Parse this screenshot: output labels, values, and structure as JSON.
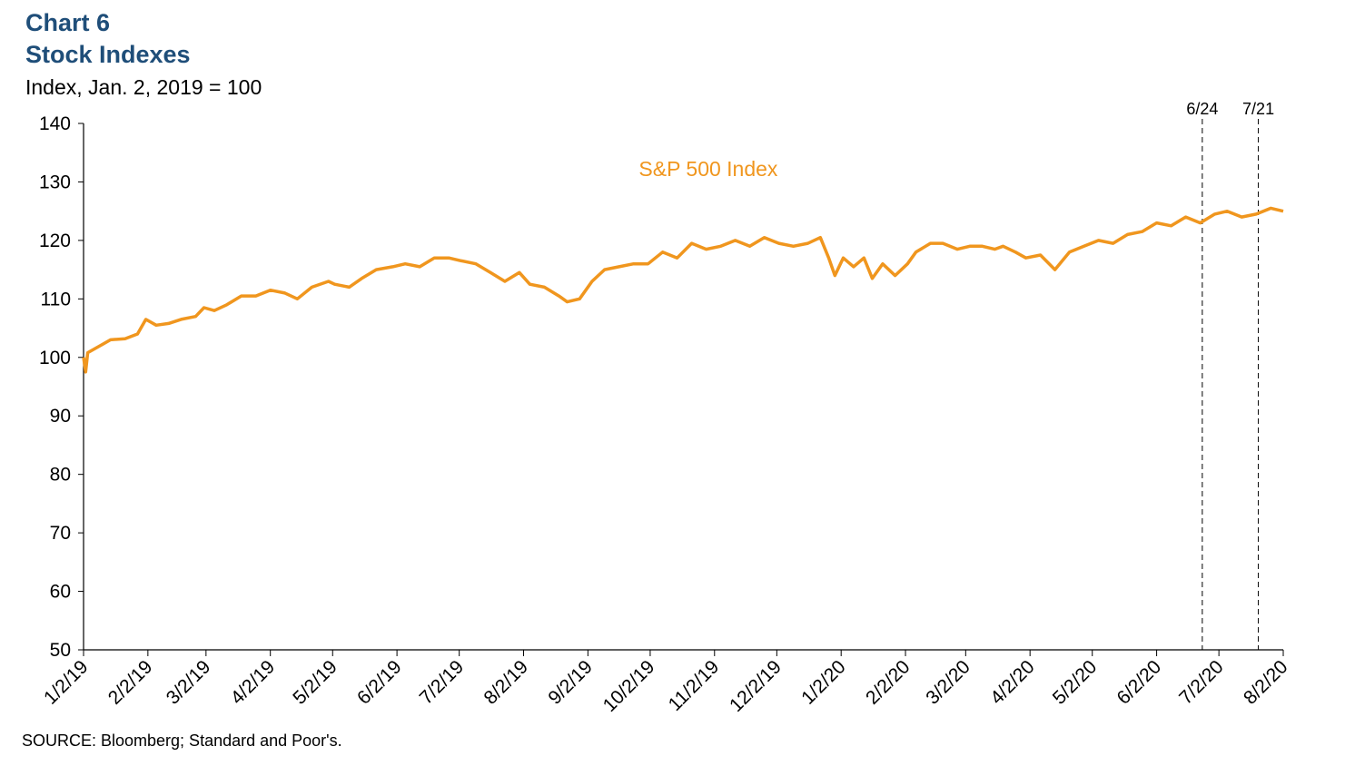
{
  "header": {
    "title_line1": "Chart 6",
    "title_line2": "Stock Indexes",
    "subtitle": "Index, Jan. 2, 2019 = 100"
  },
  "footer": {
    "source": "SOURCE: Bloomberg; Standard and Poor's."
  },
  "chart_data": {
    "type": "line",
    "title": "Chart 6 Stock Indexes",
    "ylabel": "Index, Jan. 2, 2019 = 100",
    "xlabel": "",
    "ylim": [
      50,
      140
    ],
    "xlim": [
      "2019-01-02",
      "2020-08-02"
    ],
    "y_ticks": [
      50,
      60,
      70,
      80,
      90,
      100,
      110,
      120,
      130,
      140
    ],
    "x_ticks": [
      {
        "date": "2019-01-02",
        "label": "1/2/19"
      },
      {
        "date": "2019-02-02",
        "label": "2/2/19"
      },
      {
        "date": "2019-03-02",
        "label": "3/2/19"
      },
      {
        "date": "2019-04-02",
        "label": "4/2/19"
      },
      {
        "date": "2019-05-02",
        "label": "5/2/19"
      },
      {
        "date": "2019-06-02",
        "label": "6/2/19"
      },
      {
        "date": "2019-07-02",
        "label": "7/2/19"
      },
      {
        "date": "2019-08-02",
        "label": "8/2/19"
      },
      {
        "date": "2019-09-02",
        "label": "9/2/19"
      },
      {
        "date": "2019-10-02",
        "label": "10/2/19"
      },
      {
        "date": "2019-11-02",
        "label": "11/2/19"
      },
      {
        "date": "2019-12-02",
        "label": "12/2/19"
      },
      {
        "date": "2020-01-02",
        "label": "1/2/20"
      },
      {
        "date": "2020-02-02",
        "label": "2/2/20"
      },
      {
        "date": "2020-03-02",
        "label": "3/2/20"
      },
      {
        "date": "2020-04-02",
        "label": "4/2/20"
      },
      {
        "date": "2020-05-02",
        "label": "5/2/20"
      },
      {
        "date": "2020-06-02",
        "label": "6/2/20"
      },
      {
        "date": "2020-07-02",
        "label": "7/2/20"
      },
      {
        "date": "2020-08-02",
        "label": "8/2/20"
      }
    ],
    "vertical_markers": [
      {
        "date": "2020-06-24",
        "label": "6/24"
      },
      {
        "date": "2020-07-21",
        "label": "7/21"
      }
    ],
    "grid": false,
    "legend": "inline labels",
    "series": [
      {
        "name": "S&P 500 Index",
        "color": "#f0961e",
        "points": [
          [
            "2019-01-02",
            100
          ],
          [
            "2019-01-03",
            97.5
          ],
          [
            "2019-01-04",
            100.8
          ],
          [
            "2019-01-10",
            102
          ],
          [
            "2019-01-15",
            103
          ],
          [
            "2019-01-22",
            103.2
          ],
          [
            "2019-01-28",
            104
          ],
          [
            "2019-02-01",
            106.5
          ],
          [
            "2019-02-06",
            105.5
          ],
          [
            "2019-02-12",
            105.8
          ],
          [
            "2019-02-18",
            106.5
          ],
          [
            "2019-02-25",
            107
          ],
          [
            "2019-03-01",
            108.5
          ],
          [
            "2019-03-06",
            108
          ],
          [
            "2019-03-12",
            109
          ],
          [
            "2019-03-19",
            110.5
          ],
          [
            "2019-03-26",
            110.5
          ],
          [
            "2019-04-02",
            111.5
          ],
          [
            "2019-04-09",
            111
          ],
          [
            "2019-04-15",
            110
          ],
          [
            "2019-04-22",
            112
          ],
          [
            "2019-04-30",
            113
          ],
          [
            "2019-05-03",
            112.5
          ],
          [
            "2019-05-10",
            112
          ],
          [
            "2019-05-16",
            113.5
          ],
          [
            "2019-05-23",
            115
          ],
          [
            "2019-05-31",
            115.5
          ],
          [
            "2019-06-06",
            116
          ],
          [
            "2019-06-13",
            115.5
          ],
          [
            "2019-06-20",
            117
          ],
          [
            "2019-06-27",
            117
          ],
          [
            "2019-07-03",
            116.5
          ],
          [
            "2019-07-10",
            116
          ],
          [
            "2019-07-17",
            114.5
          ],
          [
            "2019-07-24",
            113
          ],
          [
            "2019-07-31",
            114.5
          ],
          [
            "2019-08-05",
            112.5
          ],
          [
            "2019-08-12",
            112
          ],
          [
            "2019-08-19",
            110.5
          ],
          [
            "2019-08-23",
            109.5
          ],
          [
            "2019-08-29",
            110
          ],
          [
            "2019-09-04",
            113
          ],
          [
            "2019-09-10",
            115
          ],
          [
            "2019-09-17",
            115.5
          ],
          [
            "2019-09-24",
            116
          ],
          [
            "2019-10-01",
            116
          ],
          [
            "2019-10-08",
            118
          ],
          [
            "2019-10-15",
            117
          ],
          [
            "2019-10-22",
            119.5
          ],
          [
            "2019-10-29",
            118.5
          ],
          [
            "2019-11-05",
            119
          ],
          [
            "2019-11-12",
            120
          ],
          [
            "2019-11-19",
            119
          ],
          [
            "2019-11-26",
            120.5
          ],
          [
            "2019-12-03",
            119.5
          ],
          [
            "2019-12-10",
            119
          ],
          [
            "2019-12-17",
            119.5
          ],
          [
            "2019-12-23",
            120.5
          ],
          [
            "2019-12-27",
            117
          ],
          [
            "2019-12-30",
            114
          ],
          [
            "2020-01-03",
            117
          ],
          [
            "2020-01-08",
            115.5
          ],
          [
            "2020-01-13",
            117
          ],
          [
            "2020-01-17",
            113.5
          ],
          [
            "2020-01-22",
            116
          ],
          [
            "2020-01-28",
            114
          ],
          [
            "2020-02-03",
            116
          ],
          [
            "2020-02-07",
            118
          ],
          [
            "2020-02-14",
            119.5
          ],
          [
            "2020-02-20",
            119.5
          ],
          [
            "2020-02-27",
            118.5
          ],
          [
            "2020-03-04",
            119
          ],
          [
            "2020-03-10",
            119
          ],
          [
            "2020-03-16",
            118.5
          ],
          [
            "2020-03-20",
            119
          ],
          [
            "2020-03-26",
            118
          ],
          [
            "2020-03-31",
            117
          ],
          [
            "2020-04-07",
            117.5
          ],
          [
            "2020-04-14",
            115
          ],
          [
            "2020-04-21",
            118
          ],
          [
            "2020-04-28",
            119
          ],
          [
            "2020-05-05",
            120
          ],
          [
            "2020-05-12",
            119.5
          ],
          [
            "2020-05-19",
            121
          ],
          [
            "2020-05-26",
            121.5
          ],
          [
            "2020-06-02",
            123
          ],
          [
            "2020-06-09",
            122.5
          ],
          [
            "2020-06-16",
            124
          ],
          [
            "2020-06-23",
            123
          ],
          [
            "2020-06-30",
            124.5
          ],
          [
            "2020-07-06",
            125
          ],
          [
            "2020-07-13",
            124
          ],
          [
            "2020-07-20",
            124.5
          ],
          [
            "2020-07-27",
            125.5
          ],
          [
            "2020-08-02",
            125
          ]
        ]
      }
    ]
  }
}
